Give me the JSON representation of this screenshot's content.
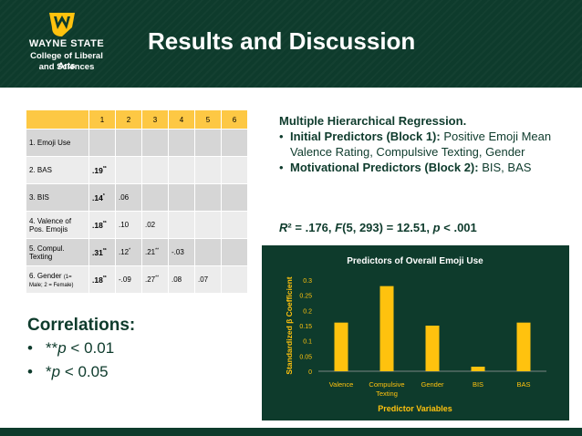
{
  "header": {
    "university": "WAYNE STATE",
    "college_line1": "College of Liberal Arts",
    "college_line2": "and Sciences",
    "title": "Results and Discussion"
  },
  "correlation_table": {
    "col_headers": [
      "1",
      "2",
      "3",
      "4",
      "5",
      "6"
    ],
    "rows": [
      {
        "label": "1. Emoji Use",
        "cells": [
          "",
          "",
          "",
          "",
          "",
          ""
        ]
      },
      {
        "label": "2. BAS",
        "cells": [
          ".19**",
          "",
          "",
          "",
          "",
          ""
        ]
      },
      {
        "label": "3. BIS",
        "cells": [
          ".14*",
          ".06",
          "",
          "",
          "",
          ""
        ]
      },
      {
        "label": "4. Valence of Pos. Emojis",
        "cells": [
          ".18**",
          ".10",
          ".02",
          "",
          "",
          ""
        ]
      },
      {
        "label": "5. Compul. Texting",
        "cells": [
          ".31**",
          ".12*",
          ".21**",
          "-.03",
          "",
          ""
        ]
      },
      {
        "label": "6. Gender",
        "label_small": "(1= Male; 2 = Female)",
        "cells": [
          ".18**",
          "-.09",
          ".27**",
          ".08",
          ".07",
          ""
        ]
      }
    ]
  },
  "correlations": {
    "title": "Correlations:",
    "items": [
      "**p < 0.01",
      "*p < 0.05"
    ]
  },
  "regression": {
    "title": "Multiple Hierarchical Regression.",
    "bullet1_bold": "Initial Predictors (Block 1):",
    "bullet1_text": "Positive Emoji Mean Valence Rating, Compulsive Texting, Gender",
    "bullet2_bold": "Motivational Predictors (Block 2):",
    "bullet2_text": "BIS, BAS",
    "stat_line": "R² = .176, F(5, 293) = 12.51, p < .001"
  },
  "colors": {
    "green": "#0e3b2c",
    "gold": "#ffc20e",
    "table_header": "#fdc844"
  },
  "chart_data": {
    "type": "bar",
    "title": "Predictors of Overall Emoji Use",
    "xlabel": "Predictor Variables",
    "ylabel": "Standardized β Coefficient",
    "categories": [
      "Valence",
      "Compulsive Texting",
      "Gender",
      "BIS",
      "BAS"
    ],
    "values": [
      0.16,
      0.28,
      0.15,
      0.015,
      0.16
    ],
    "ylim": [
      0,
      0.3
    ],
    "yticks": [
      "0",
      "0.05",
      "0.1",
      "0.15",
      "0.2",
      "0.25",
      "0.3"
    ],
    "grid": false
  }
}
